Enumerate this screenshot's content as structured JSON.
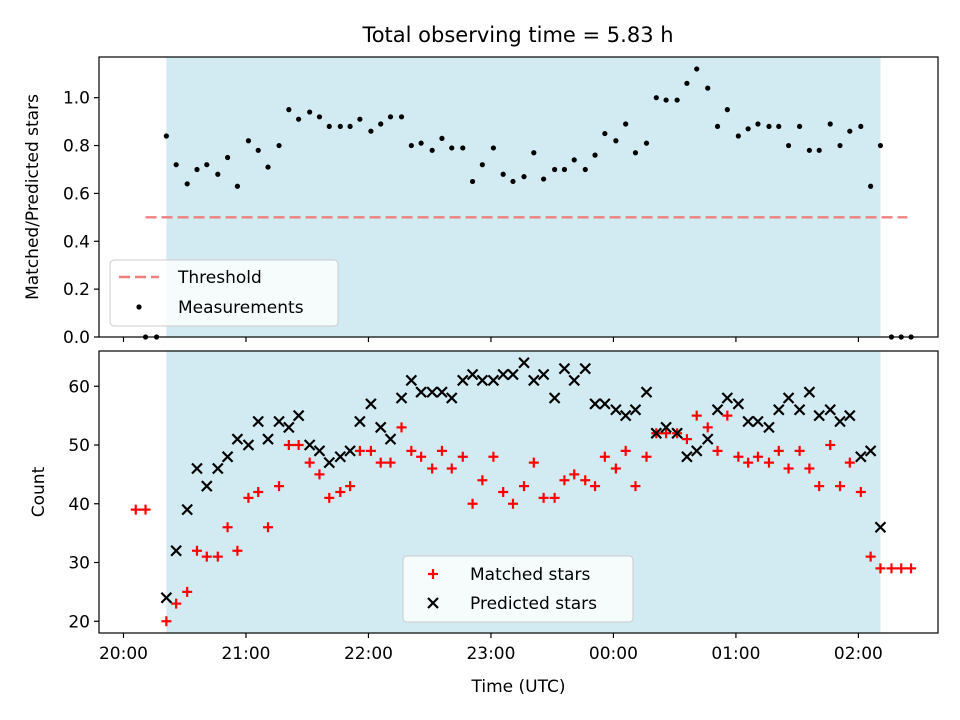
{
  "figure": {
    "title": "Total observing time = 5.83 h"
  },
  "chart_data": [
    {
      "type": "scatter",
      "panel": "top",
      "title": "Total observing time = 5.83 h",
      "xlabel": "",
      "ylabel": "Matched/Predicted stars",
      "xticks": [
        "20:00",
        "21:00",
        "22:00",
        "23:00",
        "00:00",
        "01:00",
        "02:00"
      ],
      "yticks": [
        "0.0",
        "0.2",
        "0.4",
        "0.6",
        "0.8",
        "1.0"
      ],
      "ylim": [
        0,
        1.17
      ],
      "grid": false,
      "legend_position": "lower-left",
      "shaded_span_hours": [
        20.35,
        26.18
      ],
      "threshold": {
        "name": "Threshold",
        "value": 0.5,
        "x_range_hours": [
          20.18,
          26.4
        ],
        "color": "#f08080"
      },
      "series": [
        {
          "name": "Measurements",
          "color": "#000000",
          "marker": "dot",
          "x_hours": [
            20.18,
            20.27,
            20.35,
            20.43,
            20.52,
            20.6,
            20.68,
            20.77,
            20.85,
            20.93,
            21.02,
            21.1,
            21.18,
            21.27,
            21.35,
            21.43,
            21.52,
            21.6,
            21.68,
            21.77,
            21.85,
            21.93,
            22.02,
            22.1,
            22.18,
            22.27,
            22.35,
            22.43,
            22.52,
            22.6,
            22.68,
            22.77,
            22.85,
            22.93,
            23.02,
            23.1,
            23.18,
            23.27,
            23.35,
            23.43,
            23.52,
            23.6,
            23.68,
            23.77,
            23.85,
            23.93,
            24.02,
            24.1,
            24.18,
            24.27,
            24.35,
            24.43,
            24.52,
            24.6,
            24.68,
            24.77,
            24.85,
            24.93,
            25.02,
            25.1,
            25.18,
            25.27,
            25.35,
            25.43,
            25.52,
            25.6,
            25.68,
            25.77,
            25.85,
            25.93,
            26.02,
            26.1,
            26.18,
            26.27,
            26.35,
            26.43
          ],
          "y": [
            0.0,
            0.0,
            0.84,
            0.72,
            0.64,
            0.7,
            0.72,
            0.68,
            0.75,
            0.63,
            0.82,
            0.78,
            0.71,
            0.8,
            0.95,
            0.91,
            0.94,
            0.92,
            0.88,
            0.88,
            0.88,
            0.91,
            0.86,
            0.89,
            0.92,
            0.92,
            0.8,
            0.81,
            0.78,
            0.83,
            0.79,
            0.79,
            0.65,
            0.72,
            0.79,
            0.68,
            0.65,
            0.67,
            0.77,
            0.66,
            0.7,
            0.7,
            0.74,
            0.7,
            0.76,
            0.85,
            0.82,
            0.89,
            0.77,
            0.81,
            1.0,
            0.99,
            0.99,
            1.06,
            1.12,
            1.04,
            0.88,
            0.95,
            0.84,
            0.87,
            0.89,
            0.88,
            0.88,
            0.8,
            0.88,
            0.78,
            0.78,
            0.89,
            0.8,
            0.86,
            0.88,
            0.63,
            0.8,
            0.0,
            0.0,
            0.0
          ]
        }
      ]
    },
    {
      "type": "scatter",
      "panel": "bottom",
      "title": "",
      "xlabel": "Time (UTC)",
      "ylabel": "Count",
      "xticks": [
        "20:00",
        "21:00",
        "22:00",
        "23:00",
        "00:00",
        "01:00",
        "02:00"
      ],
      "yticks": [
        "20",
        "30",
        "40",
        "50",
        "60"
      ],
      "ylim": [
        18,
        66
      ],
      "grid": false,
      "legend_position": "lower-center",
      "shaded_span_hours": [
        20.35,
        26.18
      ],
      "series": [
        {
          "name": "Matched stars",
          "color": "#ff0000",
          "marker": "plus",
          "x_hours": [
            20.1,
            20.18,
            20.35,
            20.43,
            20.52,
            20.6,
            20.68,
            20.77,
            20.85,
            20.93,
            21.02,
            21.1,
            21.18,
            21.27,
            21.35,
            21.43,
            21.52,
            21.6,
            21.68,
            21.77,
            21.85,
            21.93,
            22.02,
            22.1,
            22.18,
            22.27,
            22.35,
            22.43,
            22.52,
            22.6,
            22.68,
            22.77,
            22.85,
            22.93,
            23.02,
            23.1,
            23.18,
            23.27,
            23.35,
            23.43,
            23.52,
            23.6,
            23.68,
            23.77,
            23.85,
            23.93,
            24.02,
            24.1,
            24.18,
            24.27,
            24.35,
            24.43,
            24.52,
            24.6,
            24.68,
            24.77,
            24.85,
            24.93,
            25.02,
            25.1,
            25.18,
            25.27,
            25.35,
            25.43,
            25.52,
            25.6,
            25.68,
            25.77,
            25.85,
            25.93,
            26.02,
            26.1,
            26.18,
            26.27,
            26.35,
            26.43
          ],
          "y": [
            39,
            39,
            20,
            23,
            25,
            32,
            31,
            31,
            36,
            32,
            41,
            42,
            36,
            43,
            50,
            50,
            47,
            45,
            41,
            42,
            43,
            49,
            49,
            47,
            47,
            53,
            49,
            48,
            46,
            49,
            46,
            48,
            40,
            44,
            48,
            42,
            40,
            43,
            47,
            41,
            41,
            44,
            45,
            44,
            43,
            48,
            46,
            49,
            43,
            48,
            52,
            52,
            52,
            51,
            55,
            53,
            49,
            55,
            48,
            47,
            48,
            47,
            49,
            46,
            49,
            46,
            43,
            50,
            43,
            47,
            42,
            31,
            29,
            29,
            29,
            29
          ]
        },
        {
          "name": "Predicted stars",
          "color": "#000000",
          "marker": "x",
          "x_hours": [
            20.35,
            20.43,
            20.52,
            20.6,
            20.68,
            20.77,
            20.85,
            20.93,
            21.02,
            21.1,
            21.18,
            21.27,
            21.35,
            21.43,
            21.52,
            21.6,
            21.68,
            21.77,
            21.85,
            21.93,
            22.02,
            22.1,
            22.18,
            22.27,
            22.35,
            22.43,
            22.52,
            22.6,
            22.68,
            22.77,
            22.85,
            22.93,
            23.02,
            23.1,
            23.18,
            23.27,
            23.35,
            23.43,
            23.52,
            23.6,
            23.68,
            23.77,
            23.85,
            23.93,
            24.02,
            24.1,
            24.18,
            24.27,
            24.35,
            24.43,
            24.52,
            24.6,
            24.68,
            24.77,
            24.85,
            24.93,
            25.02,
            25.1,
            25.18,
            25.27,
            25.35,
            25.43,
            25.52,
            25.6,
            25.68,
            25.77,
            25.85,
            25.93,
            26.02,
            26.1,
            26.18
          ],
          "y": [
            24,
            32,
            39,
            46,
            43,
            46,
            48,
            51,
            50,
            54,
            51,
            54,
            53,
            55,
            50,
            49,
            47,
            48,
            49,
            54,
            57,
            53,
            51,
            58,
            61,
            59,
            59,
            59,
            58,
            61,
            62,
            61,
            61,
            62,
            62,
            64,
            61,
            62,
            58,
            63,
            61,
            63,
            57,
            57,
            56,
            55,
            56,
            59,
            52,
            53,
            52,
            48,
            49,
            51,
            56,
            58,
            57,
            54,
            54,
            53,
            56,
            58,
            56,
            59,
            55,
            56,
            54,
            55,
            48,
            49,
            36
          ]
        }
      ]
    }
  ]
}
